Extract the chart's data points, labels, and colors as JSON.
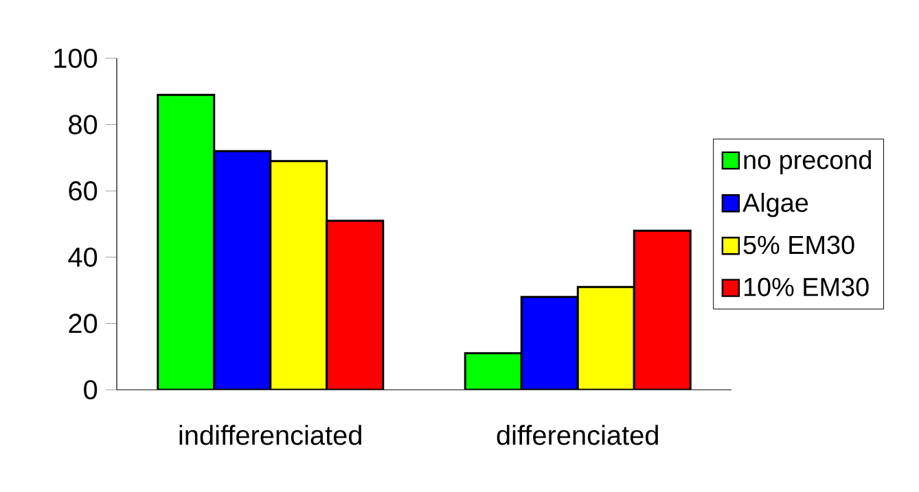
{
  "chart_data": {
    "type": "bar",
    "categories": [
      "indifferenciated",
      "differenciated"
    ],
    "series": [
      {
        "name": "no precond",
        "color": "#00ff00",
        "values": [
          89,
          11
        ]
      },
      {
        "name": "Algae",
        "color": "#0000ff",
        "values": [
          72,
          28
        ]
      },
      {
        "name": "5% EM30",
        "color": "#ffff00",
        "values": [
          69,
          31
        ]
      },
      {
        "name": "10% EM30",
        "color": "#ff0000",
        "values": [
          51,
          48
        ]
      }
    ],
    "ylim": [
      0,
      100
    ],
    "yticks": [
      0,
      20,
      40,
      60,
      80,
      100
    ],
    "legend": "right"
  }
}
